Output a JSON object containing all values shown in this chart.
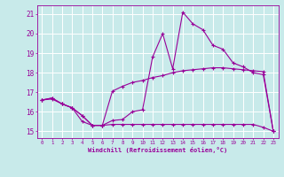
{
  "background_color": "#c8eaea",
  "grid_color": "#ffffff",
  "line_color": "#990099",
  "x_label": "Windchill (Refroidissement éolien,°C)",
  "x_ticks": [
    0,
    1,
    2,
    3,
    4,
    5,
    6,
    7,
    8,
    9,
    10,
    11,
    12,
    13,
    14,
    15,
    16,
    17,
    18,
    19,
    20,
    21,
    22,
    23
  ],
  "y_ticks": [
    15,
    16,
    17,
    18,
    19,
    20,
    21
  ],
  "xlim": [
    -0.5,
    23.5
  ],
  "ylim": [
    14.65,
    21.45
  ],
  "series1_x": [
    0,
    1,
    2,
    3,
    4,
    5,
    6,
    7,
    8,
    9,
    10,
    11,
    12,
    13,
    14,
    15,
    16,
    17,
    18,
    19,
    20,
    21,
    22,
    23
  ],
  "series1_y": [
    16.6,
    16.7,
    16.4,
    16.2,
    15.5,
    15.3,
    15.3,
    15.55,
    15.6,
    16.0,
    16.1,
    18.8,
    20.0,
    18.2,
    21.1,
    20.5,
    20.2,
    19.4,
    19.2,
    18.5,
    18.3,
    18.0,
    17.9,
    15.0
  ],
  "series2_x": [
    0,
    1,
    2,
    3,
    4,
    5,
    6,
    7,
    8,
    9,
    10,
    11,
    12,
    13,
    14,
    15,
    16,
    17,
    18,
    19,
    20,
    21,
    22,
    23
  ],
  "series2_y": [
    16.6,
    16.7,
    16.4,
    16.2,
    15.8,
    15.3,
    15.3,
    17.05,
    17.3,
    17.5,
    17.6,
    17.75,
    17.85,
    18.0,
    18.1,
    18.15,
    18.2,
    18.25,
    18.25,
    18.2,
    18.15,
    18.1,
    18.05,
    15.0
  ],
  "series3_x": [
    0,
    1,
    2,
    3,
    4,
    5,
    6,
    7,
    8,
    9,
    10,
    11,
    12,
    13,
    14,
    15,
    16,
    17,
    18,
    19,
    20,
    21,
    22,
    23
  ],
  "series3_y": [
    16.6,
    16.65,
    16.4,
    16.2,
    15.8,
    15.3,
    15.3,
    15.35,
    15.35,
    15.35,
    15.35,
    15.35,
    15.35,
    15.35,
    15.35,
    15.35,
    15.35,
    15.35,
    15.35,
    15.35,
    15.35,
    15.35,
    15.2,
    15.0
  ]
}
